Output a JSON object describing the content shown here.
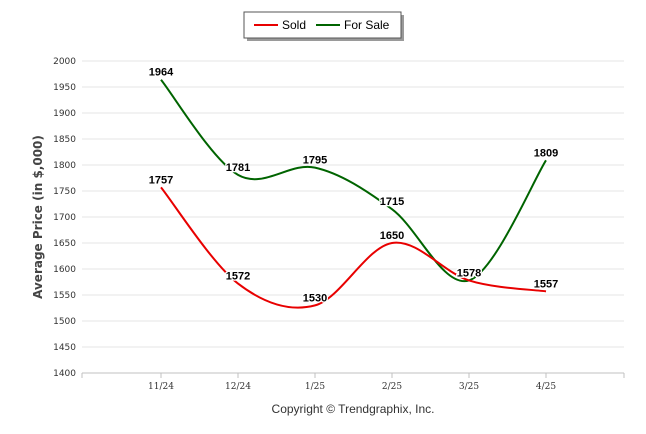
{
  "legend": {
    "items": [
      {
        "label": "Sold",
        "color": "#e80000"
      },
      {
        "label": "For Sale",
        "color": "#006400"
      }
    ]
  },
  "footer": {
    "copyright": "Copyright © Trendgraphix, Inc."
  },
  "chart_data": {
    "type": "line",
    "title": "",
    "xlabel": "",
    "ylabel": "Average Price (in $,000)",
    "categories": [
      "11/24",
      "12/24",
      "1/25",
      "2/25",
      "3/25",
      "4/25"
    ],
    "ylim": [
      1400,
      2000
    ],
    "yticks": [
      1400,
      1450,
      1500,
      1550,
      1600,
      1650,
      1700,
      1750,
      1800,
      1850,
      1900,
      1950,
      2000
    ],
    "grid": true,
    "legend_position": "top-center",
    "smooth": true,
    "series": [
      {
        "name": "Sold",
        "color": "#e80000",
        "values": [
          1757,
          1572,
          1530,
          1650,
          1578,
          1557
        ]
      },
      {
        "name": "For Sale",
        "color": "#006400",
        "values": [
          1964,
          1781,
          1795,
          1715,
          1578,
          1809
        ]
      }
    ]
  }
}
